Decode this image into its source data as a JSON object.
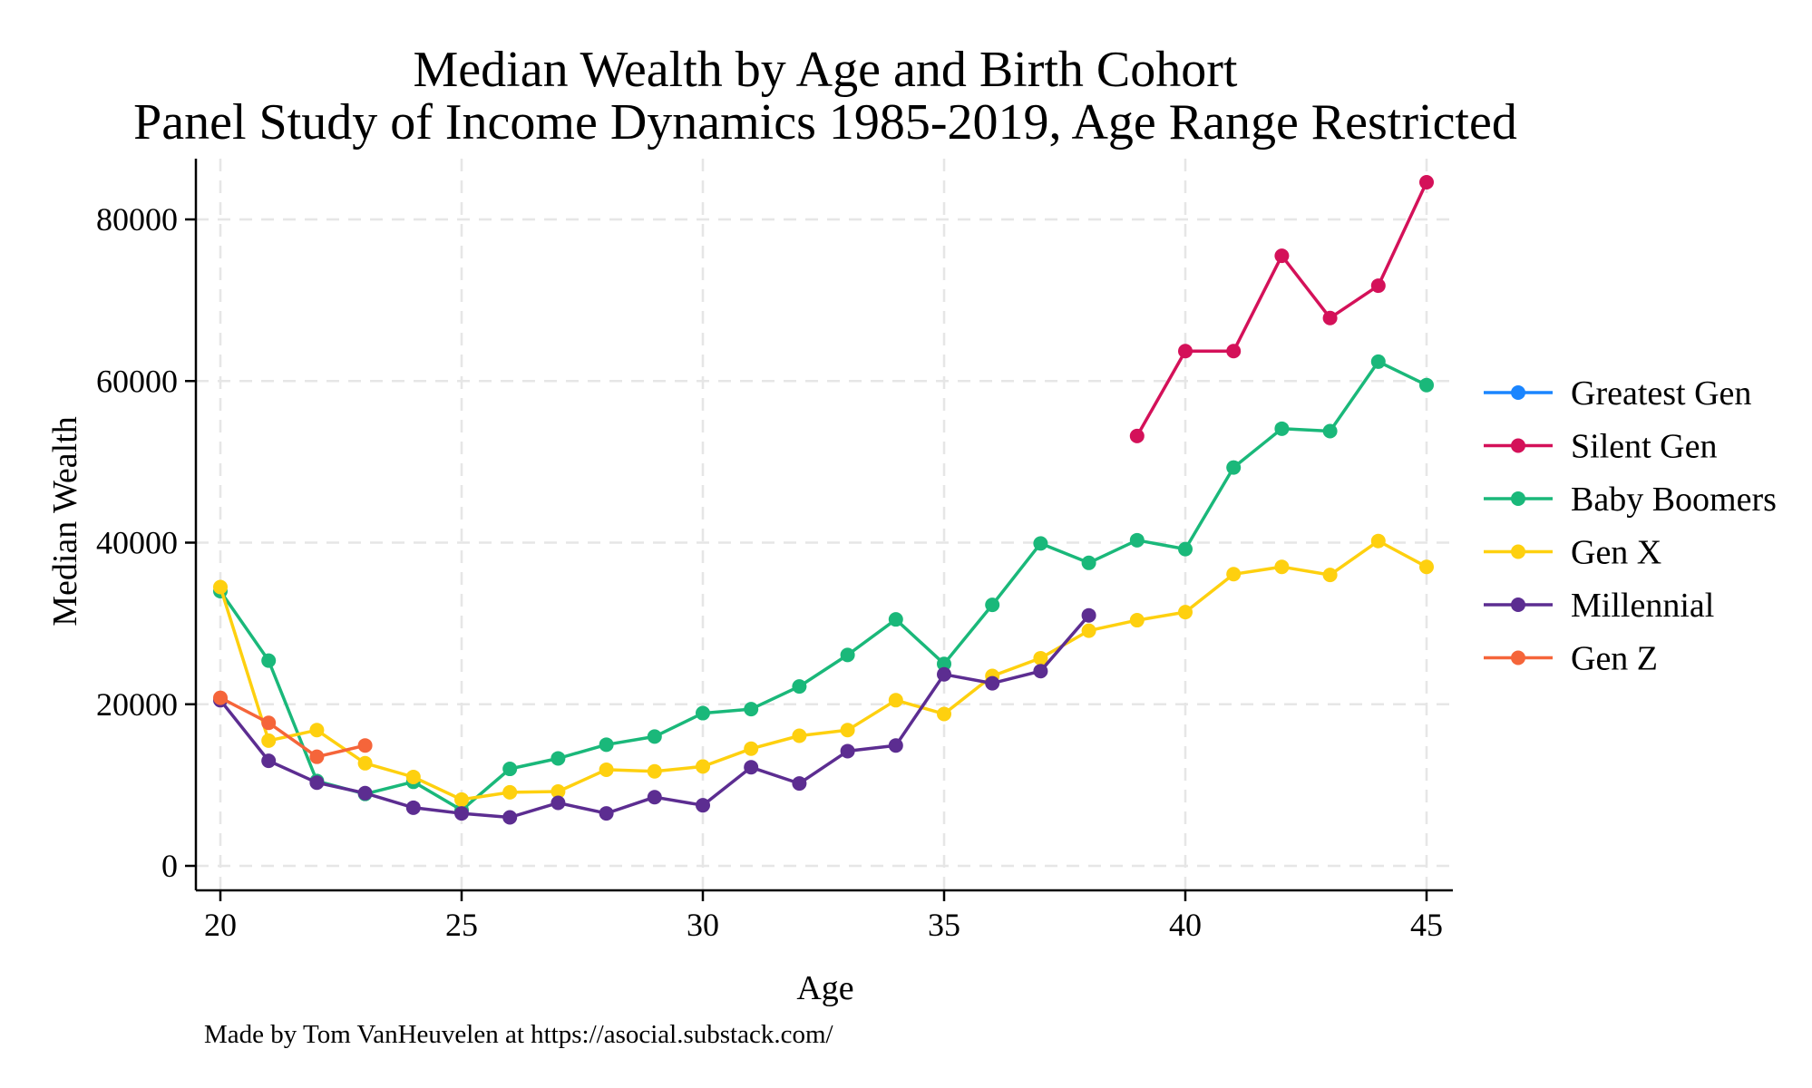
{
  "chart_data": {
    "type": "line",
    "title": "Median Wealth by Age and Birth Cohort",
    "subtitle": "Panel Study of Income Dynamics  1985-2019, Age Range Restricted",
    "xlabel": "Age",
    "ylabel": "Median Wealth",
    "note": "Made by Tom VanHeuvelen at https://asocial.substack.com/",
    "xlim": [
      19.5,
      45.5
    ],
    "ylim": [
      -2000,
      87500
    ],
    "xticks": [
      20,
      25,
      30,
      35,
      40,
      45
    ],
    "yticks": [
      0,
      20000,
      40000,
      60000,
      80000
    ],
    "grid": true,
    "legend_position": "right",
    "series": [
      {
        "name": "Greatest Gen",
        "color": "#1a85ff",
        "x": [],
        "y": []
      },
      {
        "name": "Silent Gen",
        "color": "#d41159",
        "x": [
          39,
          40,
          41,
          42,
          43,
          44,
          45
        ],
        "y": [
          53200,
          63700,
          63700,
          75500,
          67800,
          71800,
          84600
        ]
      },
      {
        "name": "Baby Boomers",
        "color": "#1ab87a",
        "x": [
          20,
          21,
          22,
          23,
          24,
          25,
          26,
          27,
          28,
          29,
          30,
          31,
          32,
          33,
          34,
          35,
          36,
          37,
          38,
          39,
          40,
          41,
          42,
          43,
          44,
          45
        ],
        "y": [
          34000,
          25400,
          10500,
          8900,
          10400,
          6900,
          12000,
          13300,
          15000,
          16000,
          18900,
          19400,
          22200,
          26100,
          30500,
          25000,
          32300,
          39900,
          37500,
          40300,
          39200,
          49300,
          54100,
          53800,
          62400,
          59500
        ]
      },
      {
        "name": "Gen X",
        "color": "#fed00f",
        "x": [
          20,
          21,
          22,
          23,
          24,
          25,
          26,
          27,
          28,
          29,
          30,
          31,
          32,
          33,
          34,
          35,
          36,
          37,
          38,
          39,
          40,
          41,
          42,
          43,
          44,
          45
        ],
        "y": [
          34500,
          15500,
          16800,
          12700,
          11000,
          8200,
          9100,
          9200,
          11900,
          11700,
          12300,
          14500,
          16100,
          16800,
          20500,
          18800,
          23500,
          25700,
          29100,
          30400,
          31400,
          36100,
          37000,
          36000,
          40200,
          37000
        ]
      },
      {
        "name": "Millennial",
        "color": "#5c2d91",
        "x": [
          20,
          21,
          22,
          23,
          24,
          25,
          26,
          27,
          28,
          29,
          30,
          31,
          32,
          33,
          34,
          35,
          36,
          37,
          38
        ],
        "y": [
          20500,
          13000,
          10300,
          9000,
          7200,
          6500,
          6000,
          7800,
          6500,
          8500,
          7500,
          12200,
          10200,
          14200,
          14900,
          23700,
          22600,
          24100,
          31000
        ]
      },
      {
        "name": "Gen Z",
        "color": "#f5653a",
        "x": [
          20,
          21,
          22,
          23
        ],
        "y": [
          20800,
          17700,
          13500,
          14900
        ]
      }
    ]
  }
}
